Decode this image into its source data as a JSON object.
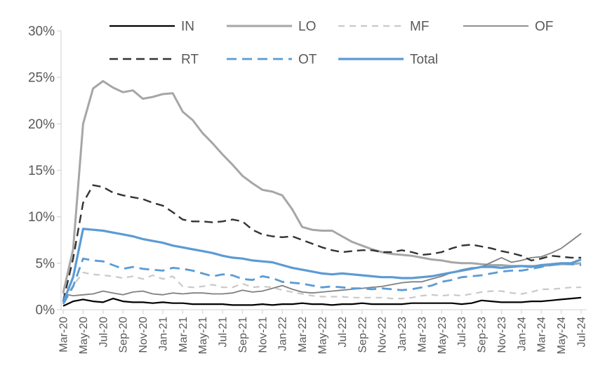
{
  "chart_data": {
    "type": "line",
    "title": "",
    "xlabel": "",
    "ylabel": "",
    "ylim": [
      0,
      30
    ],
    "ytick_step": 5,
    "ytick_labels": [
      "0%",
      "5%",
      "10%",
      "15%",
      "20%",
      "25%",
      "30%"
    ],
    "xtick_shown_every": 2,
    "grid": "off",
    "legend_position": "top",
    "legend_rows": [
      [
        "IN",
        "LO",
        "MF",
        "OF"
      ],
      [
        "RT",
        "OT",
        "Total"
      ]
    ],
    "colors": {
      "accent_blue": "#5B9BD5",
      "gray_medium": "#A6A6A6",
      "gray_light": "#C9C9C9",
      "gray_dark": "#808080",
      "near_black": "#333333",
      "black": "#000000",
      "axis_line": "#D9D9D9",
      "label_text": "#595959"
    },
    "x_categories": [
      "Mar-20",
      "Apr-20",
      "May-20",
      "Jun-20",
      "Jul-20",
      "Aug-20",
      "Sep-20",
      "Oct-20",
      "Nov-20",
      "Dec-20",
      "Jan-21",
      "Feb-21",
      "Mar-21",
      "Apr-21",
      "May-21",
      "Jun-21",
      "Jul-21",
      "Aug-21",
      "Sep-21",
      "Oct-21",
      "Nov-21",
      "Dec-21",
      "Jan-22",
      "Feb-22",
      "Mar-22",
      "Apr-22",
      "May-22",
      "Jun-22",
      "Jul-22",
      "Aug-22",
      "Sep-22",
      "Oct-22",
      "Nov-22",
      "Dec-22",
      "Jan-23",
      "Feb-23",
      "Mar-23",
      "Apr-23",
      "May-23",
      "Jun-23",
      "Jul-23",
      "Aug-23",
      "Sep-23",
      "Oct-23",
      "Nov-23",
      "Dec-23",
      "Jan-24",
      "Feb-24",
      "Mar-24",
      "Apr-24",
      "May-24",
      "Jun-24",
      "Jul-24"
    ],
    "series": [
      {
        "name": "IN",
        "color": "#000000",
        "style": "solid",
        "width": 2.2,
        "dasharray": "",
        "values": [
          0.4,
          0.9,
          1.1,
          0.9,
          0.8,
          1.2,
          0.9,
          0.8,
          0.8,
          0.7,
          0.8,
          0.7,
          0.7,
          0.6,
          0.6,
          0.6,
          0.6,
          0.5,
          0.5,
          0.5,
          0.6,
          0.5,
          0.6,
          0.6,
          0.7,
          0.6,
          0.6,
          0.5,
          0.6,
          0.6,
          0.7,
          0.6,
          0.6,
          0.6,
          0.6,
          0.7,
          0.7,
          0.7,
          0.7,
          0.7,
          0.6,
          0.7,
          1.0,
          0.9,
          0.8,
          0.8,
          0.8,
          0.9,
          0.9,
          1.0,
          1.1,
          1.2,
          1.3
        ]
      },
      {
        "name": "LO",
        "color": "#A6A6A6",
        "style": "solid",
        "width": 3,
        "dasharray": "",
        "values": [
          1.8,
          6.5,
          20.0,
          23.8,
          24.6,
          23.9,
          23.4,
          23.6,
          22.7,
          22.9,
          23.2,
          23.3,
          21.3,
          20.4,
          19.0,
          17.9,
          16.7,
          15.6,
          14.4,
          13.6,
          12.9,
          12.7,
          12.3,
          10.8,
          8.9,
          8.6,
          8.5,
          8.5,
          7.9,
          7.3,
          6.9,
          6.5,
          6.2,
          6.0,
          5.9,
          5.8,
          5.6,
          5.4,
          5.3,
          5.1,
          5.0,
          5.0,
          4.9,
          4.8,
          4.8,
          4.7,
          4.7,
          4.7,
          4.7,
          4.8,
          4.9,
          4.9,
          5.0
        ]
      },
      {
        "name": "MF",
        "color": "#C9C9C9",
        "style": "dashed",
        "width": 2.2,
        "dasharray": "9 7",
        "values": [
          1.0,
          2.6,
          4.0,
          3.8,
          3.7,
          3.6,
          3.4,
          3.6,
          3.3,
          3.7,
          3.3,
          3.6,
          2.5,
          2.4,
          2.5,
          2.7,
          2.4,
          2.4,
          2.8,
          2.4,
          2.5,
          2.4,
          2.1,
          1.9,
          1.7,
          1.5,
          1.4,
          1.4,
          1.4,
          1.3,
          1.3,
          1.3,
          1.3,
          1.2,
          1.2,
          1.3,
          1.5,
          1.6,
          1.5,
          1.6,
          1.5,
          1.7,
          1.9,
          2.0,
          2.0,
          1.8,
          1.7,
          1.9,
          2.2,
          2.2,
          2.3,
          2.4,
          2.4
        ]
      },
      {
        "name": "OF",
        "color": "#808080",
        "style": "solid",
        "width": 1.8,
        "dasharray": "",
        "values": [
          1.7,
          1.5,
          1.6,
          1.7,
          2.0,
          1.8,
          1.6,
          1.9,
          2.0,
          1.7,
          1.6,
          1.8,
          1.7,
          1.8,
          1.8,
          1.7,
          1.7,
          1.8,
          2.1,
          1.9,
          2.0,
          2.3,
          2.6,
          2.2,
          1.9,
          1.8,
          1.9,
          2.0,
          2.1,
          2.2,
          2.3,
          2.4,
          2.5,
          2.7,
          2.9,
          3.0,
          3.0,
          3.3,
          3.6,
          4.0,
          4.3,
          4.5,
          4.6,
          5.1,
          5.6,
          5.1,
          5.3,
          5.6,
          5.7,
          6.1,
          6.6,
          7.4,
          8.2
        ]
      },
      {
        "name": "RT",
        "color": "#333333",
        "style": "dashed",
        "width": 2.4,
        "dasharray": "12 7",
        "values": [
          0.9,
          5.5,
          11.5,
          13.4,
          13.2,
          12.6,
          12.3,
          12.1,
          11.9,
          11.5,
          11.2,
          10.5,
          9.7,
          9.5,
          9.5,
          9.4,
          9.5,
          9.7,
          9.5,
          8.6,
          8.1,
          7.9,
          7.8,
          7.9,
          7.5,
          7.1,
          6.7,
          6.4,
          6.2,
          6.3,
          6.4,
          6.4,
          6.2,
          6.2,
          6.4,
          6.2,
          5.9,
          6.0,
          6.2,
          6.6,
          6.9,
          7.0,
          6.8,
          6.6,
          6.3,
          6.1,
          5.8,
          5.3,
          5.5,
          5.8,
          5.7,
          5.6,
          5.6
        ]
      },
      {
        "name": "OT",
        "color": "#5B9BD5",
        "style": "dashed",
        "width": 2.8,
        "dasharray": "14 8",
        "values": [
          0.6,
          2.5,
          5.5,
          5.3,
          5.2,
          4.8,
          4.4,
          4.6,
          4.4,
          4.3,
          4.2,
          4.5,
          4.4,
          4.2,
          3.9,
          3.6,
          3.8,
          3.7,
          3.3,
          3.2,
          3.6,
          3.4,
          3.0,
          2.9,
          2.8,
          2.6,
          2.4,
          2.5,
          2.4,
          2.3,
          2.3,
          2.2,
          2.3,
          2.2,
          2.1,
          2.2,
          2.4,
          2.6,
          3.0,
          3.2,
          3.5,
          3.6,
          3.7,
          3.9,
          4.1,
          4.2,
          4.2,
          4.4,
          4.6,
          4.8,
          5.0,
          4.9,
          4.8
        ]
      },
      {
        "name": "Total",
        "color": "#5B9BD5",
        "style": "solid",
        "width": 3.2,
        "dasharray": "",
        "values": [
          0.8,
          3.5,
          8.7,
          8.6,
          8.5,
          8.3,
          8.1,
          7.9,
          7.6,
          7.4,
          7.2,
          6.9,
          6.7,
          6.5,
          6.3,
          6.1,
          5.8,
          5.6,
          5.5,
          5.3,
          5.2,
          5.1,
          4.8,
          4.5,
          4.3,
          4.1,
          3.9,
          3.8,
          3.9,
          3.8,
          3.7,
          3.6,
          3.5,
          3.5,
          3.4,
          3.4,
          3.5,
          3.6,
          3.8,
          4.0,
          4.2,
          4.4,
          4.6,
          4.6,
          4.5,
          4.6,
          4.7,
          4.6,
          4.8,
          4.9,
          5.0,
          5.0,
          5.4
        ]
      }
    ]
  }
}
